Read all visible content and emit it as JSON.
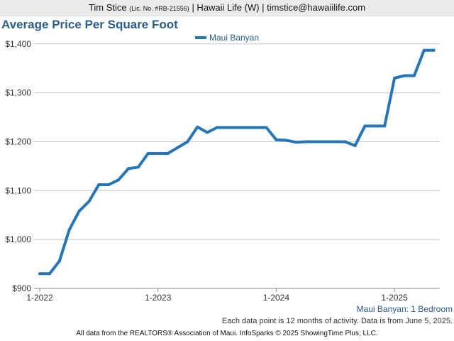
{
  "header": {
    "name": "Tim Stice",
    "license": "(Lic. No. #RB-21556)",
    "rest": "| Hawaii Life (W) | timstice@hawaiilife.com"
  },
  "chart_data": {
    "type": "line",
    "title": "Average Price Per Square Foot",
    "xlabel": "",
    "ylabel": "",
    "ylim": [
      900,
      1420
    ],
    "y_ticks": [
      900,
      1000,
      1100,
      1200,
      1300,
      1400
    ],
    "y_tick_labels": [
      "$900",
      "$1,000",
      "$1,100",
      "$1,200",
      "$1,300",
      "$1,400"
    ],
    "x_ticks": [
      "2022-01",
      "2023-01",
      "2024-01",
      "2025-01"
    ],
    "x_tick_labels": [
      "1-2022",
      "1-2023",
      "1-2024",
      "1-2025"
    ],
    "grid": true,
    "legend_position": "top-center",
    "x": [
      "2022-01",
      "2022-02",
      "2022-03",
      "2022-04",
      "2022-05",
      "2022-06",
      "2022-07",
      "2022-08",
      "2022-09",
      "2022-10",
      "2022-11",
      "2022-12",
      "2023-01",
      "2023-02",
      "2023-03",
      "2023-04",
      "2023-05",
      "2023-06",
      "2023-07",
      "2023-08",
      "2023-09",
      "2023-10",
      "2023-11",
      "2023-12",
      "2024-01",
      "2024-02",
      "2024-03",
      "2024-04",
      "2024-05",
      "2024-06",
      "2024-07",
      "2024-08",
      "2024-09",
      "2024-10",
      "2024-11",
      "2024-12",
      "2025-01",
      "2025-02",
      "2025-03",
      "2025-04",
      "2025-05"
    ],
    "series": [
      {
        "name": "Maui Banyan",
        "color": "#2575b7",
        "values": [
          930,
          930,
          956,
          1020,
          1058,
          1078,
          1112,
          1112,
          1122,
          1145,
          1148,
          1176,
          1176,
          1176,
          1188,
          1200,
          1230,
          1219,
          1229,
          1229,
          1229,
          1229,
          1229,
          1229,
          1204,
          1203,
          1199,
          1200,
          1200,
          1200,
          1200,
          1200,
          1192,
          1232,
          1232,
          1232,
          1330,
          1335,
          1335,
          1387,
          1387
        ]
      }
    ]
  },
  "subtitle_right": "Maui Banyan: 1 Bedroom",
  "note": "Each data point is 12 months of activity. Data is from June 5, 2025.",
  "footer": "All data from the REALTORS® Association of Maui. InfoSparks © 2025 ShowingTime Plus, LLC."
}
